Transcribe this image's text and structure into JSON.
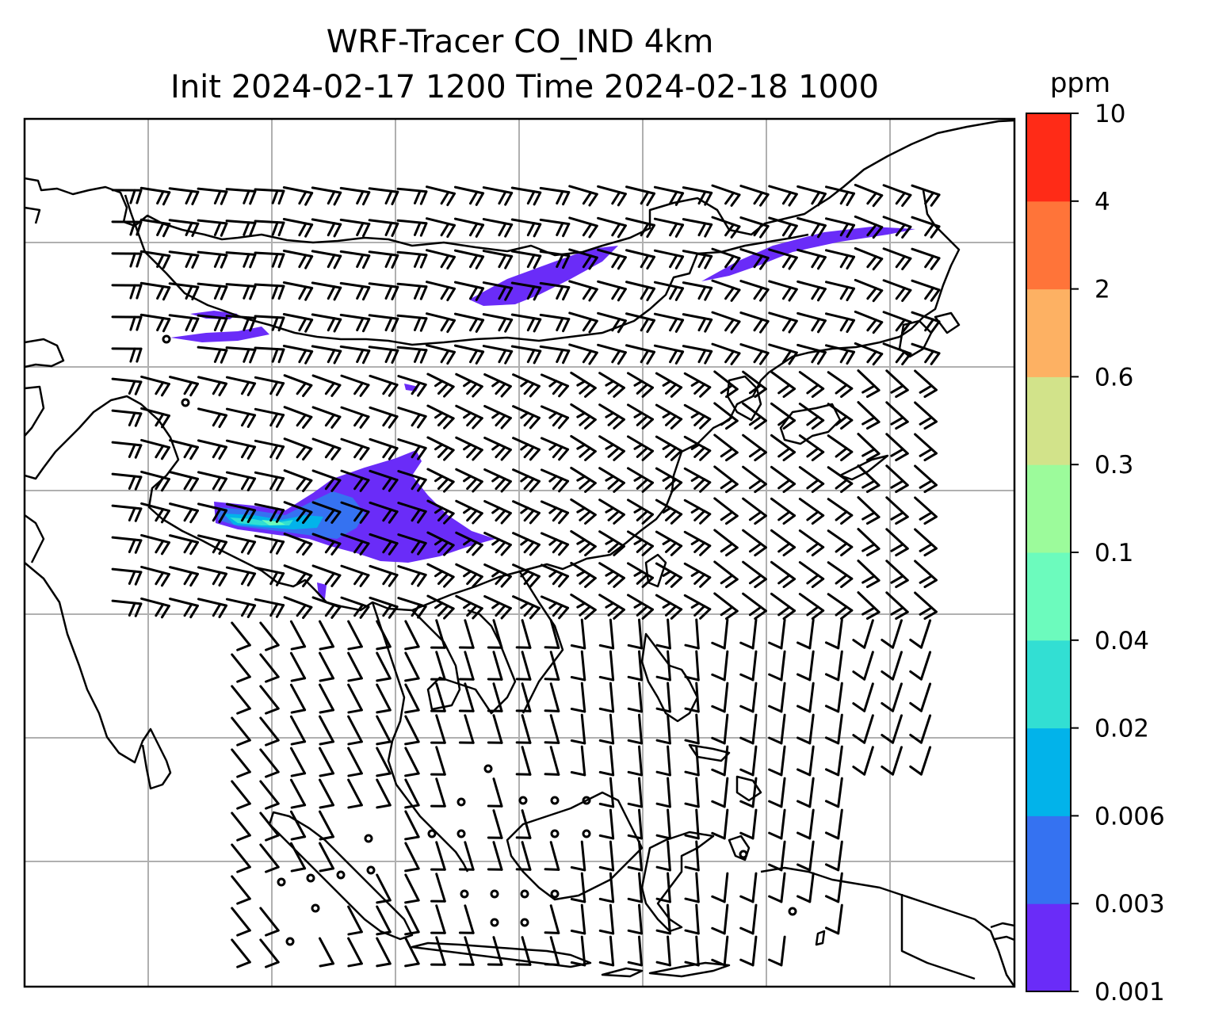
{
  "title": {
    "line1": "WRF-Tracer CO_IND 4km",
    "line2": "Init 2024-02-17 1200 Time 2024-02-18 1000"
  },
  "colorbar": {
    "unit": "ppm",
    "levels": [
      "0.001",
      "0.003",
      "0.006",
      "0.02",
      "0.04",
      "0.1",
      "0.3",
      "0.6",
      "2",
      "4",
      "10"
    ],
    "colors": [
      "#6a2cf8",
      "#3572f1",
      "#02b3ea",
      "#32dfd3",
      "#6cfbbd",
      "#9cfb9b",
      "#d2e38a",
      "#fdb163",
      "#ff7439",
      "#ff2b17"
    ]
  },
  "map": {
    "coastline_color": "#000000",
    "grid_color": "#b0b0b0",
    "wind_barbs": "black",
    "tracer_min_color": "#6a2cf8"
  }
}
